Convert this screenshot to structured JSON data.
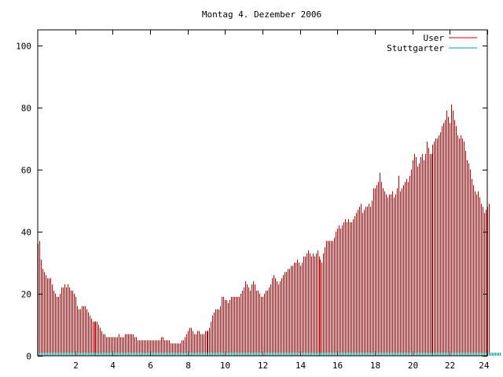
{
  "chart_data": {
    "type": "bar",
    "title": "Montag 4. Dezember 2006",
    "xlabel": "",
    "ylabel": "",
    "xlim": [
      0,
      24
    ],
    "ylim": [
      0,
      105
    ],
    "x_ticks": [
      2,
      4,
      6,
      8,
      10,
      12,
      14,
      16,
      18,
      20,
      22,
      24
    ],
    "y_ticks": [
      0,
      20,
      40,
      60,
      80,
      100
    ],
    "grid": false,
    "legend_position": "top-right",
    "sample_interval_minutes": 5,
    "series": [
      {
        "name": "User",
        "color": "#cc0000",
        "values": [
          36,
          37,
          31,
          28,
          27,
          26,
          25,
          25,
          25,
          23,
          21,
          20,
          19,
          19,
          20,
          22,
          22,
          23,
          22,
          23,
          22,
          21,
          21,
          20,
          19,
          16,
          15,
          15,
          16,
          16,
          16,
          15,
          14,
          13,
          12,
          11,
          11,
          11,
          11,
          10,
          9,
          8,
          7,
          7,
          6,
          6,
          6,
          6,
          6,
          6,
          6,
          6,
          7,
          6,
          6,
          6,
          7,
          7,
          7,
          7,
          7,
          7,
          6,
          6,
          5,
          5,
          5,
          5,
          5,
          5,
          5,
          5,
          5,
          5,
          5,
          5,
          5,
          5,
          5,
          6,
          6,
          5,
          5,
          5,
          5,
          4,
          4,
          4,
          4,
          4,
          4,
          4,
          5,
          5,
          6,
          7,
          8,
          9,
          9,
          8,
          7,
          7,
          8,
          8,
          7,
          7,
          7,
          8,
          8,
          8,
          9,
          11,
          13,
          14,
          15,
          15,
          15,
          16,
          19,
          19,
          18,
          18,
          17,
          18,
          19,
          19,
          19,
          19,
          19,
          19,
          20,
          21,
          22,
          24,
          23,
          22,
          21,
          23,
          24,
          23,
          21,
          21,
          20,
          19,
          19,
          20,
          21,
          21,
          22,
          23,
          25,
          26,
          25,
          24,
          23,
          24,
          25,
          26,
          27,
          27,
          28,
          28,
          29,
          29,
          30,
          30,
          31,
          30,
          29,
          30,
          32,
          32,
          33,
          34,
          33,
          32,
          33,
          32,
          33,
          34,
          32,
          31,
          30,
          33,
          35,
          37,
          37,
          37,
          37,
          37,
          38,
          40,
          41,
          42,
          41,
          42,
          43,
          44,
          43,
          44,
          43,
          43,
          44,
          45,
          46,
          47,
          48,
          49,
          46,
          47,
          48,
          48,
          49,
          48,
          50,
          54,
          54,
          55,
          56,
          59,
          56,
          54,
          53,
          52,
          51,
          52,
          52,
          53,
          51,
          52,
          54,
          58,
          53,
          54,
          55,
          56,
          57,
          56,
          58,
          60,
          63,
          65,
          64,
          61,
          62,
          64,
          65,
          63,
          65,
          69,
          67,
          65,
          65,
          68,
          69,
          70,
          70,
          71,
          72,
          74,
          75,
          76,
          79,
          77,
          75,
          81,
          79,
          76,
          74,
          71,
          70,
          71,
          70,
          69,
          66,
          63,
          62,
          60,
          57,
          55,
          53,
          52,
          53,
          51,
          49,
          48,
          46,
          47,
          48,
          49
        ]
      },
      {
        "name": "Stuttgarter",
        "color": "#00a0a0",
        "values": [
          1,
          1,
          1,
          1,
          1,
          1,
          1,
          1,
          1,
          1,
          1,
          1,
          1,
          1,
          1,
          1,
          1,
          1,
          1,
          1,
          1,
          1,
          1,
          1,
          1,
          1,
          1,
          1,
          1,
          1,
          1,
          1,
          1,
          1,
          1,
          1,
          1,
          1,
          1,
          1,
          1,
          1,
          1,
          1,
          1,
          1,
          1,
          1,
          1,
          1,
          1,
          1,
          1,
          1,
          1,
          1,
          1,
          1,
          1,
          1,
          1,
          1,
          1,
          1,
          1,
          1,
          1,
          1,
          1,
          1,
          1,
          1,
          1,
          1,
          1,
          1,
          1,
          1,
          1,
          1,
          1,
          1,
          1,
          1,
          1,
          1,
          1,
          1,
          1,
          1,
          1,
          1,
          1,
          1,
          1,
          1,
          1,
          1,
          1,
          1,
          1,
          1,
          1,
          1,
          1,
          1,
          1,
          1,
          1,
          1,
          1,
          1,
          1,
          1,
          1,
          1,
          1,
          1,
          1,
          1,
          1,
          1,
          1,
          1,
          1,
          1,
          1,
          1,
          1,
          1,
          1,
          1,
          1,
          1,
          1,
          1,
          1,
          1,
          1,
          1,
          1,
          1,
          1,
          1,
          1,
          1,
          1,
          1,
          1,
          1,
          1,
          1,
          1,
          1,
          1,
          1,
          1,
          1,
          1,
          1,
          1,
          1,
          1,
          1,
          1,
          1,
          1,
          1,
          1,
          1,
          1,
          1,
          1,
          1,
          1,
          1,
          1,
          1,
          1,
          1,
          1,
          1,
          1,
          1,
          1,
          1,
          1,
          1,
          1,
          1,
          1,
          1,
          1,
          1,
          1,
          1,
          1,
          1,
          1,
          1,
          1,
          1,
          1,
          1,
          1,
          1,
          1,
          1,
          1,
          1,
          1,
          1,
          1,
          1,
          1,
          1,
          1,
          1,
          1,
          1,
          1,
          1,
          1,
          1,
          1,
          1,
          1,
          1,
          1,
          1,
          1,
          1,
          1,
          1,
          1,
          1,
          1,
          1,
          1,
          1,
          1,
          1,
          1,
          1,
          1,
          1,
          1,
          1,
          1,
          1,
          1,
          1,
          1,
          1,
          1,
          1,
          1,
          1,
          1,
          1,
          1,
          1,
          1,
          1,
          1,
          1,
          1,
          1,
          1,
          1,
          1,
          1,
          1,
          1,
          1,
          1,
          1,
          1,
          1,
          1,
          1,
          1,
          1,
          1,
          1,
          1,
          1,
          1,
          1,
          1,
          1,
          1,
          1,
          1,
          1,
          1,
          1
        ]
      }
    ]
  }
}
